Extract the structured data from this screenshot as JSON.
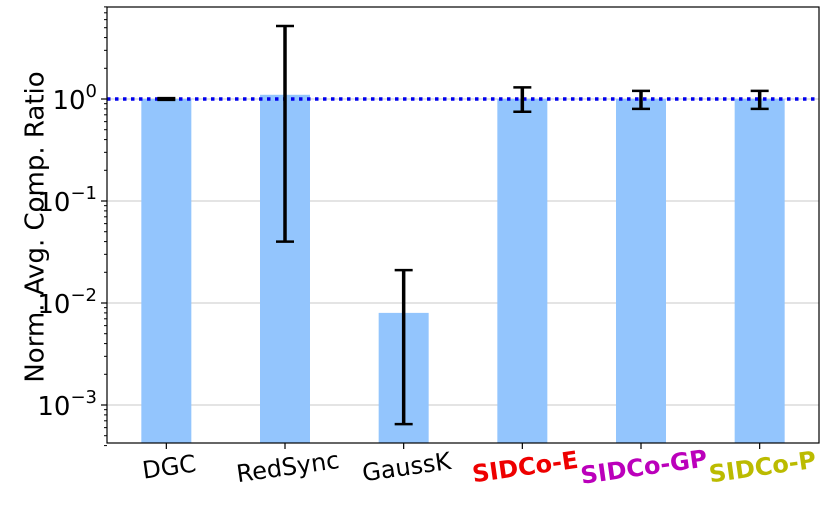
{
  "chart_data": {
    "type": "bar",
    "title": "",
    "xlabel": "",
    "ylabel": "Norm. Avg. Comp. Ratio",
    "yscale": "log",
    "ylim": [
      0.0004,
      8
    ],
    "grid": "horizontal",
    "colors": {
      "bar": "#93c5fd",
      "error": "#000000",
      "reference": "#0000ee"
    },
    "reference_line": {
      "value": 1.0,
      "style": "dotted"
    },
    "y_ticks": [
      {
        "value": 1,
        "base": "10",
        "exp": "0"
      },
      {
        "value": 0.1,
        "base": "10",
        "exp": "−1"
      },
      {
        "value": 0.01,
        "base": "10",
        "exp": "−2"
      },
      {
        "value": 0.001,
        "base": "10",
        "exp": "−3"
      }
    ],
    "categories": [
      "DGC",
      "RedSync",
      "GaussK",
      "SIDCo-E",
      "SIDCo-GP",
      "SIDCo-P"
    ],
    "category_colors": [
      "#000000",
      "#000000",
      "#000000",
      "#ee0000",
      "#bb00bb",
      "#bbbb00"
    ],
    "category_bold": [
      false,
      false,
      false,
      true,
      true,
      true
    ],
    "values": [
      1.0,
      1.1,
      0.008,
      1.0,
      1.0,
      1.0
    ],
    "error_low": [
      0.98,
      0.04,
      0.00065,
      0.75,
      0.8,
      0.8
    ],
    "error_high": [
      1.02,
      5.2,
      0.021,
      1.3,
      1.2,
      1.2
    ]
  }
}
